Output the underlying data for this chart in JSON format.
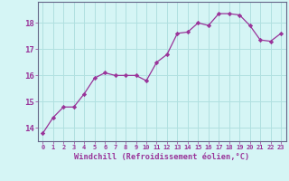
{
  "x": [
    0,
    1,
    2,
    3,
    4,
    5,
    6,
    7,
    8,
    9,
    10,
    11,
    12,
    13,
    14,
    15,
    16,
    17,
    18,
    19,
    20,
    21,
    22,
    23
  ],
  "y": [
    13.8,
    14.4,
    14.8,
    14.8,
    15.3,
    15.9,
    16.1,
    16.0,
    16.0,
    16.0,
    15.8,
    16.5,
    16.8,
    17.6,
    17.65,
    18.0,
    17.9,
    18.35,
    18.35,
    18.3,
    17.9,
    17.35,
    17.3,
    17.6
  ],
  "line_color": "#993399",
  "marker": "D",
  "marker_size": 2.2,
  "bg_color": "#d5f5f5",
  "grid_color": "#b0e0e0",
  "xlabel": "Windchill (Refroidissement éolien,°C)",
  "xlabel_color": "#993399",
  "tick_color": "#993399",
  "ylabel_ticks": [
    14,
    15,
    16,
    17,
    18
  ],
  "xtick_labels": [
    "0",
    "1",
    "2",
    "3",
    "4",
    "5",
    "6",
    "7",
    "8",
    "9",
    "10",
    "11",
    "12",
    "13",
    "14",
    "15",
    "16",
    "17",
    "18",
    "19",
    "20",
    "21",
    "22",
    "23"
  ],
  "xlim": [
    -0.5,
    23.5
  ],
  "ylim": [
    13.5,
    18.8
  ]
}
